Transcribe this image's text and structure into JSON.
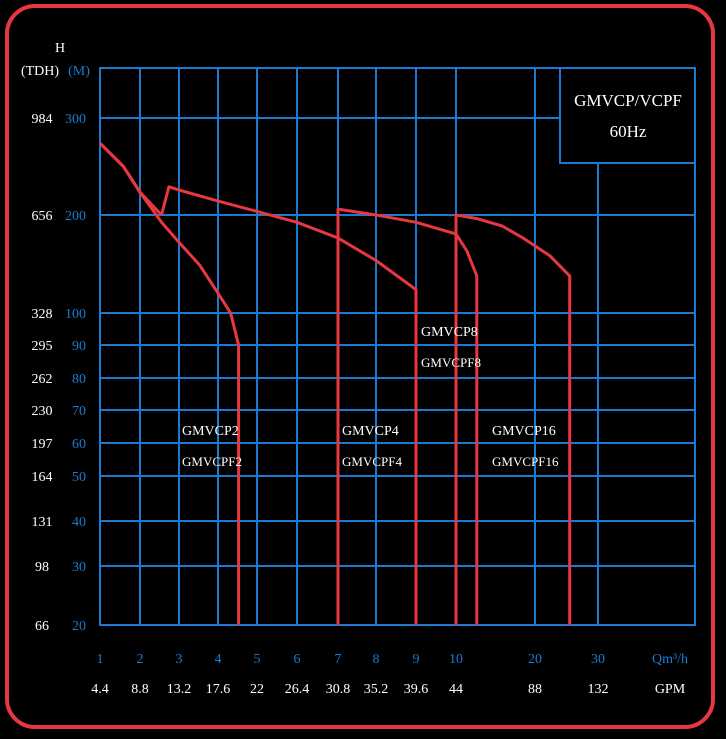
{
  "chart_data": {
    "type": "line",
    "title": "GMVCP/VCPF",
    "subtitle": "60Hz",
    "y_left_label_top": "H",
    "y_left_label_ft": "(TDH)",
    "y_left_label_m": "(M)",
    "x_label_m3h": "Qm³/h",
    "x_label_gpm": "GPM",
    "x_scale": "log",
    "y_scale": "log",
    "xlim": [
      1,
      40
    ],
    "ylim": [
      20,
      400
    ],
    "grid": true,
    "x_ticks": [
      "1",
      "2",
      "3",
      "4",
      "5",
      "6",
      "7",
      "8",
      "9",
      "10",
      "20",
      "30"
    ],
    "x_ticks_gpm": [
      "4.4",
      "8.8",
      "13.2",
      "17.6",
      "22",
      "26.4",
      "30.8",
      "35.2",
      "39.6",
      "44",
      "88",
      "132"
    ],
    "y_ticks_m": [
      "20",
      "30",
      "40",
      "50",
      "60",
      "70",
      "80",
      "90",
      "100",
      "200",
      "300"
    ],
    "y_ticks_ft": [
      "66",
      "98",
      "131",
      "164",
      "197",
      "230",
      "262",
      "295",
      "328",
      "656",
      "984"
    ],
    "series": [
      {
        "name": "GMVCP2",
        "name2": "GMVCPF2",
        "x": [
          1.0,
          1.5,
          2.0,
          2.5,
          3.0,
          3.5,
          4.0,
          4.3,
          4.5,
          4.5
        ],
        "y": [
          270,
          245,
          220,
          190,
          165,
          140,
          115,
          100,
          90,
          20
        ]
      },
      {
        "name": "",
        "name2": "",
        "x": [
          2.5,
          2.7,
          3.0,
          4.0,
          5.0,
          6.0,
          7.0,
          8.0,
          9.0,
          9.0,
          9.0
        ],
        "y": [
          200,
          225,
          222,
          212,
          203,
          190,
          170,
          145,
          118,
          100,
          20
        ]
      },
      {
        "name": "GMVCP4",
        "name2": "GMVCPF4",
        "x": [
          1.0,
          1.5,
          2.0,
          2.5
        ],
        "y": [
          270,
          245,
          220,
          200
        ]
      },
      {
        "name": "GMVCP8",
        "name2": "GMVCPF8",
        "x": [
          7.0,
          7.0,
          8.0,
          9.0,
          10.0,
          11.0,
          12.0,
          12.0
        ],
        "y": [
          20,
          205,
          200,
          190,
          175,
          155,
          130,
          20
        ]
      },
      {
        "name": "GMVCP16",
        "name2": "GMVCPF16",
        "x": [
          10.0,
          10.0,
          12.0,
          15.0,
          18.0,
          22.0,
          25.0,
          25.0
        ],
        "y": [
          20,
          200,
          195,
          185,
          170,
          150,
          130,
          20
        ]
      }
    ],
    "legend_position": "top-right"
  }
}
